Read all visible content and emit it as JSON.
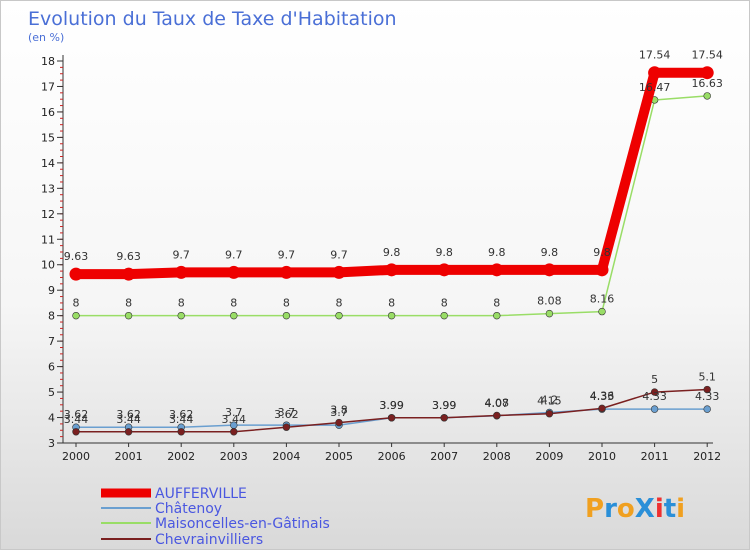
{
  "chart_data": {
    "type": "line",
    "title": "Evolution du Taux de Taxe d'Habitation",
    "subtitle": "(en %)",
    "xlabel": "",
    "ylabel": "",
    "ylim": [
      3,
      18
    ],
    "y_ticks": [
      3,
      4,
      5,
      6,
      7,
      8,
      9,
      10,
      11,
      12,
      13,
      14,
      15,
      16,
      17,
      18
    ],
    "categories": [
      "2000",
      "2001",
      "2002",
      "2003",
      "2004",
      "2005",
      "2006",
      "2007",
      "2008",
      "2009",
      "2010",
      "2011",
      "2012"
    ],
    "series": [
      {
        "name": "AUFFERVILLE",
        "color": "#ee0000",
        "values": [
          9.63,
          9.63,
          9.7,
          9.7,
          9.7,
          9.7,
          9.8,
          9.8,
          9.8,
          9.8,
          9.8,
          17.54,
          17.54
        ],
        "labels": [
          "9.63",
          "9.63",
          "9.7",
          "9.7",
          "9.7",
          "9.7",
          "9.8",
          "9.8",
          "9.8",
          "9.8",
          "9.8",
          "17.54",
          "17.54"
        ]
      },
      {
        "name": "Châtenoy",
        "color": "#6a9fd0",
        "values": [
          3.62,
          3.62,
          3.62,
          3.7,
          3.7,
          3.7,
          3.99,
          3.99,
          4.07,
          4.2,
          4.33,
          4.33,
          4.33
        ],
        "labels": [
          "3.62",
          "3.62",
          "3.62",
          "3.7",
          "3.7",
          "3.7",
          "3.99",
          "3.99",
          "4.07",
          "4.2",
          "4.33",
          "4.33",
          "4.33"
        ]
      },
      {
        "name": "Maisoncelles-en-Gâtinais",
        "color": "#99dd66",
        "values": [
          8,
          8,
          8,
          8,
          8,
          8,
          8,
          8,
          8,
          8.08,
          8.16,
          16.47,
          16.63
        ],
        "labels": [
          "8",
          "8",
          "8",
          "8",
          "8",
          "8",
          "8",
          "8",
          "8",
          "8.08",
          "8.16",
          "16.47",
          "16.63"
        ]
      },
      {
        "name": "Chevrainvilliers",
        "color": "#7a2020",
        "values": [
          3.44,
          3.44,
          3.44,
          3.44,
          3.62,
          3.8,
          3.99,
          3.99,
          4.08,
          4.15,
          4.36,
          5,
          5.1
        ],
        "labels": [
          "3.44",
          "3.44",
          "3.44",
          "3.44",
          "3.62",
          "3.8",
          "3.99",
          "3.99",
          "4.08",
          "4.15",
          "4.36",
          "5",
          "5.1"
        ]
      }
    ],
    "legend": [
      "AUFFERVILLE",
      "Châtenoy",
      "Maisoncelles-en-Gâtinais",
      "Chevrainvilliers"
    ],
    "legend_position": "bottom-left",
    "grid": false
  },
  "branding": {
    "logo_text": "ProXiti",
    "logo_colors": [
      "#f0a020",
      "#2a8fd8",
      "#f0a020",
      "#2a8fd8",
      "#ee3030",
      "#2a8fd8",
      "#f0a020"
    ]
  }
}
